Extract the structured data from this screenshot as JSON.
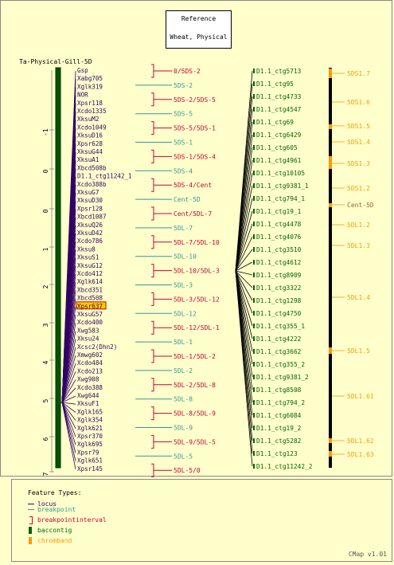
{
  "reference": {
    "line1": "Reference",
    "line2": "Wheat, Physical"
  },
  "map_title": "Ta-Physical-Gill-5D",
  "scale_ticks": [
    "-1",
    "0",
    "0",
    "1",
    "2",
    "3",
    "4",
    "5",
    "6",
    "7"
  ],
  "loci": [
    "Gsp",
    "Xabg705",
    "Xglk319",
    "NOR",
    "Xpsr118",
    "Xcdo1335",
    "XksuM2",
    "Xcdo1049",
    "XksuD16",
    "Xpsr628",
    "XksuG44",
    "XksuA1",
    "Xbcd508b",
    "D1.1_ctg11242_1",
    "Xcdo388b",
    "XksuG7",
    "XksuD30",
    "Xpsr128",
    "Xbcd1087",
    "XksuQ26",
    "XksuD42",
    "Xcdo786",
    "Xksu8",
    "XksuS1",
    "XksuG12",
    "Xcdo412",
    "Xglk614",
    "Xbcd351",
    "Xbcd508",
    "Xpsr637",
    "XksuG57",
    "Xcdo400",
    "Xwg583",
    "Xksu24",
    "Xcsc2(Dhn2)",
    "Xmwg602",
    "Xcdo484",
    "Xcdo213",
    "Xwg908",
    "Xcdo388",
    "Xwg644",
    "XksuF1",
    "Xglk165",
    "Xglk354",
    "Xglk621",
    "Xpsr370",
    "Xglk695",
    "Xpsr79",
    "Xglk651",
    "Xpsr145"
  ],
  "highlighted_locus": "Xpsr637",
  "breakpoints": [
    {
      "label": "0/5DS-2",
      "kind": "interval"
    },
    {
      "label": "5DS-2",
      "kind": "point"
    },
    {
      "label": "5DS-2/5DS-5",
      "kind": "interval"
    },
    {
      "label": "5DS-5",
      "kind": "point"
    },
    {
      "label": "5DS-5/5DS-1",
      "kind": "interval"
    },
    {
      "label": "5DS-1",
      "kind": "point"
    },
    {
      "label": "5DS-1/5DS-4",
      "kind": "interval"
    },
    {
      "label": "5DS-4",
      "kind": "point"
    },
    {
      "label": "5DS-4/Cent",
      "kind": "interval"
    },
    {
      "label": "Cent-5D",
      "kind": "point"
    },
    {
      "label": "Cent/5DL-7",
      "kind": "interval"
    },
    {
      "label": "5DL-7",
      "kind": "point"
    },
    {
      "label": "5DL-7/5DL-10",
      "kind": "interval"
    },
    {
      "label": "5DL-10",
      "kind": "point"
    },
    {
      "label": "5DL-10/5DL-3",
      "kind": "interval"
    },
    {
      "label": "5DL-3",
      "kind": "point"
    },
    {
      "label": "5DL-3/5DL-12",
      "kind": "interval"
    },
    {
      "label": "5DL-12",
      "kind": "point"
    },
    {
      "label": "5DL-12/5DL-1",
      "kind": "interval"
    },
    {
      "label": "5DL-1",
      "kind": "point"
    },
    {
      "label": "5DL-1/5DL-2",
      "kind": "interval"
    },
    {
      "label": "5DL-2",
      "kind": "point"
    },
    {
      "label": "5DL-2/5DL-8",
      "kind": "interval"
    },
    {
      "label": "5DL-8",
      "kind": "point"
    },
    {
      "label": "5DL-8/5DL-9",
      "kind": "interval"
    },
    {
      "label": "5DL-9",
      "kind": "point"
    },
    {
      "label": "5DL-9/5DL-5",
      "kind": "interval"
    },
    {
      "label": "5DL-5",
      "kind": "point"
    },
    {
      "label": "5DL-5/0",
      "kind": "interval"
    }
  ],
  "contigs": [
    "D1.1_ctg5713",
    "D1.1_ctg95",
    "D1.1_ctg4733",
    "D1.1_ctg4547",
    "D1.1_ctg69",
    "D1.1_ctg6429",
    "D1.1_ctg605",
    "D1.1_ctg4961",
    "D1.1_ctg10105",
    "D1.1_ctg9381_1",
    "D1.1_ctg794_1",
    "D1.1_ctg19_1",
    "D1.1_ctg4478",
    "D1.1_ctg4076",
    "D1.1_ctg3510",
    "D1.1_ctg4612",
    "D1.1_ctg8909",
    "D1.1_ctg3322",
    "D1.1_ctg1298",
    "D1.1_ctg4750",
    "D1.1_ctg355_1",
    "D1.1_ctg4222",
    "D1.1_ctg3662",
    "D1.1_ctg355_2",
    "D1.1_ctg9381_2",
    "D1.1_ctg8508",
    "D1.1_ctg794_2",
    "D1.1_ctg6084",
    "D1.1_ctg19_2",
    "D1.1_ctg5282",
    "D1.1_ctg123",
    "D1.1_ctg11242_2"
  ],
  "chrombands": [
    "5DS1.7",
    "5DS1.6",
    "5DS1.5",
    "5DS1.4",
    "5DS1.3",
    "5DS1.2",
    "Cent-5D",
    "5DL1.2",
    "5DL1.3",
    "5DL1.4",
    "5DL1.5",
    "5DL1.61",
    "5DL1.62",
    "5DL1.63"
  ],
  "legend": {
    "title": "Feature Types:",
    "items": [
      {
        "label": "locus",
        "color": "#330066"
      },
      {
        "label": "breakpoint",
        "color": "#339999"
      },
      {
        "label": "breakpointinterval",
        "color": "#cc0033"
      },
      {
        "label": "baccontig",
        "color": "#006600"
      },
      {
        "label": "chromband",
        "color": "#ff9900"
      }
    ]
  },
  "version": "CMap v1.01",
  "colors": {
    "locus": "#330066",
    "breakpoint": "#339999",
    "interval": "#cc0033",
    "baccontig": "#006600",
    "chromband": "#ff9900",
    "chromband_text": "#ff9900",
    "cent": "#996633",
    "bar_dark": "#005500"
  }
}
